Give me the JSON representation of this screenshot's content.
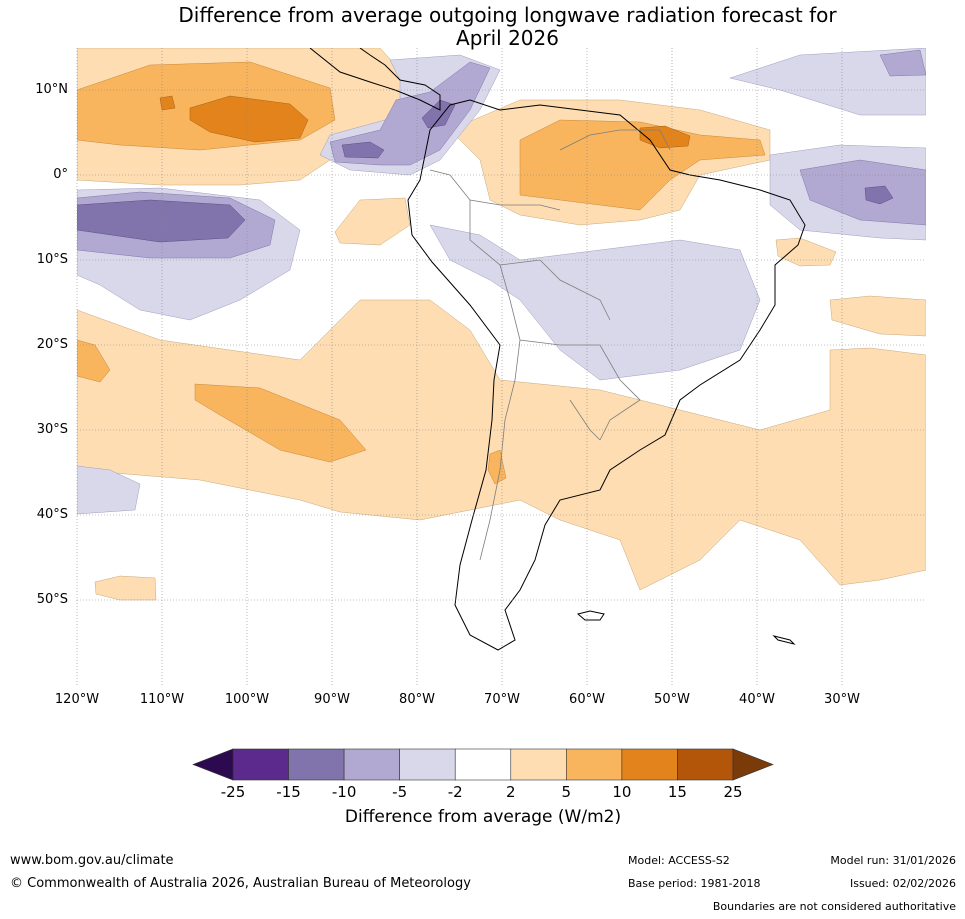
{
  "title": {
    "line1": "Difference from average outgoing longwave radiation forecast for",
    "line2": "April 2026"
  },
  "map": {
    "lat_labels": [
      "10°N",
      "0°",
      "10°S",
      "20°S",
      "30°S",
      "40°S",
      "50°S"
    ],
    "lon_labels": [
      "120°W",
      "110°W",
      "100°W",
      "90°W",
      "80°W",
      "70°W",
      "60°W",
      "50°W",
      "40°W",
      "30°W"
    ]
  },
  "colorbar": {
    "ticks": [
      "-25",
      "-15",
      "-10",
      "-5",
      "-2",
      "2",
      "5",
      "10",
      "15",
      "25"
    ],
    "colors": [
      "#5b2a8c",
      "#8173ab",
      "#b1a9d1",
      "#d9d8ea",
      "#ffffff",
      "#fdddb1",
      "#f9b45e",
      "#e2841b",
      "#b45609"
    ],
    "under_color": "#2d0a4f",
    "over_color": "#7b3b09",
    "label": "Difference from average (W/m2)"
  },
  "footer": {
    "website": "www.bom.gov.au/climate",
    "copyright": "© Commonwealth of Australia 2026, Australian Bureau of Meteorology",
    "model": "Model: ACCESS-S2",
    "model_run": "Model run: 31/01/2026",
    "base_period": "Base period: 1981-2018",
    "issued": "Issued: 02/02/2026",
    "boundaries_note": "Boundaries are not considered authoritative"
  }
}
